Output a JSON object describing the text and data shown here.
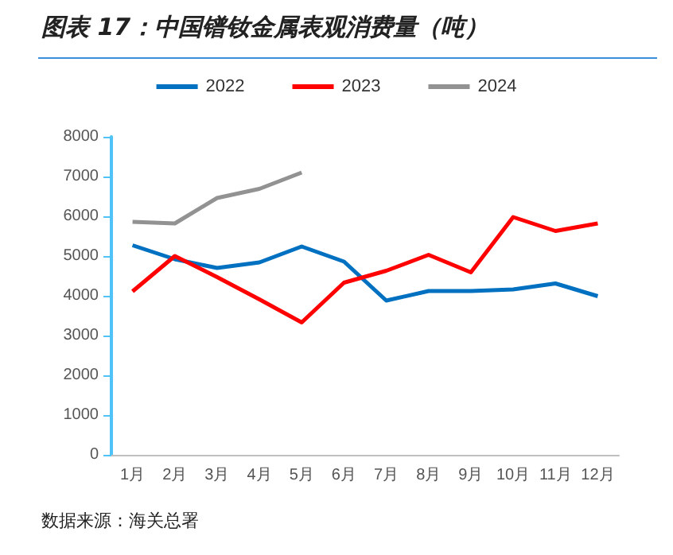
{
  "chart_data": {
    "type": "line",
    "title": "图表 17：中国镨钕金属表观消费量（吨）",
    "categories": [
      "1月",
      "2月",
      "3月",
      "4月",
      "5月",
      "6月",
      "7月",
      "8月",
      "9月",
      "10月",
      "11月",
      "12月"
    ],
    "series": [
      {
        "name": "2022",
        "color": "#0070c0",
        "values": [
          5270,
          4920,
          4700,
          4840,
          5240,
          4860,
          3880,
          4120,
          4120,
          4160,
          4310,
          3990
        ]
      },
      {
        "name": "2023",
        "color": "#ff0000",
        "values": [
          4110,
          5000,
          4470,
          3910,
          3330,
          4330,
          4630,
          5030,
          4590,
          5980,
          5630,
          5820
        ]
      },
      {
        "name": "2024",
        "color": "#929292",
        "values": [
          5860,
          5820,
          6460,
          6690,
          7100,
          null,
          null,
          null,
          null,
          null,
          null,
          null
        ]
      }
    ],
    "ylim": [
      0,
      8000
    ],
    "yticks": [
      0,
      1000,
      2000,
      3000,
      4000,
      5000,
      6000,
      7000,
      8000
    ],
    "grid": false,
    "legend": "top",
    "marker": "none",
    "line_style": "solid",
    "annotations": [
      "数据来源：海关总署"
    ]
  }
}
